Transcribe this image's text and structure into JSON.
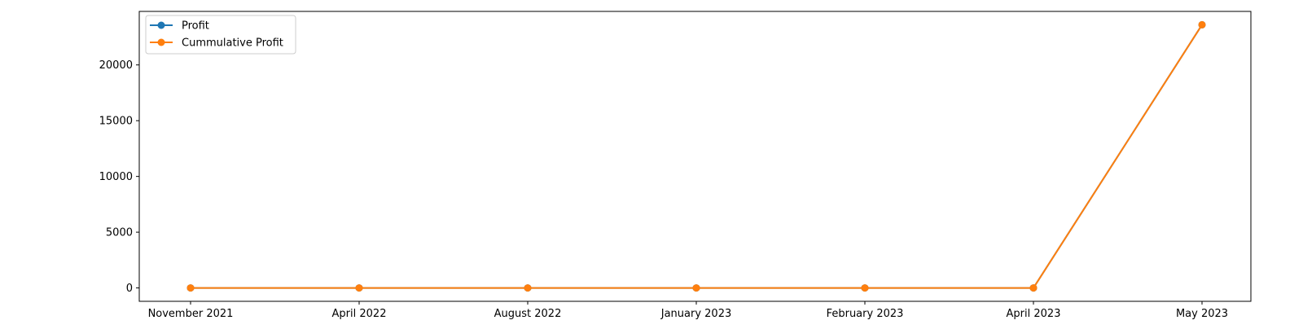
{
  "chart_data": {
    "type": "line",
    "categories": [
      "November 2021",
      "April 2022",
      "August 2022",
      "January 2023",
      "February 2023",
      "April 2023",
      "May 2023"
    ],
    "series": [
      {
        "name": "Profit",
        "color": "#1f77b4",
        "values": [
          0,
          0,
          0,
          0,
          0,
          0,
          23600
        ]
      },
      {
        "name": "Cummulative Profit",
        "color": "#ff7f0e",
        "values": [
          0,
          0,
          0,
          0,
          0,
          0,
          23600
        ]
      }
    ],
    "yticks": [
      0,
      5000,
      10000,
      15000,
      20000
    ],
    "ylim": [
      -1200,
      24800
    ],
    "grid": false,
    "legend": "top-left",
    "title": "",
    "xlabel": "",
    "ylabel": ""
  }
}
